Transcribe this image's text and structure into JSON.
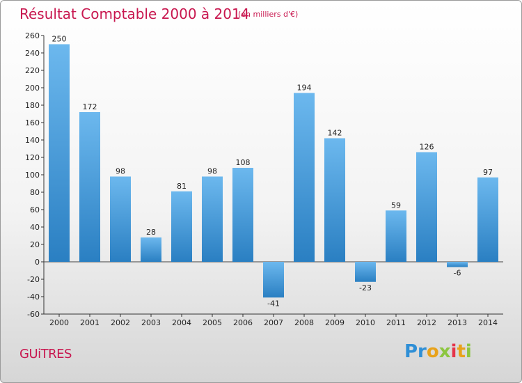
{
  "header": {
    "title": "Résultat Comptable 2000 à 2014",
    "subtitle": "(en milliers d'€)"
  },
  "footer": {
    "town": "GUiTRES",
    "logo": {
      "p": "Pr",
      "o": "o",
      "x": "x",
      "i": "i",
      "t": "t",
      "i2": "i"
    }
  },
  "colors": {
    "bar_top": "#6cb8ee",
    "bar_bottom": "#2a7fc2",
    "title": "#c8174f"
  },
  "chart_data": {
    "type": "bar",
    "title": "Résultat Comptable 2000 à 2014",
    "subtitle": "(en milliers d'€)",
    "categories": [
      "2000",
      "2001",
      "2002",
      "2003",
      "2004",
      "2005",
      "2006",
      "2007",
      "2008",
      "2009",
      "2010",
      "2011",
      "2012",
      "2013",
      "2014"
    ],
    "values": [
      250,
      172,
      98,
      28,
      81,
      98,
      108,
      -41,
      194,
      142,
      -23,
      59,
      126,
      -6,
      97
    ],
    "xlabel": "",
    "ylabel": "",
    "ylim": [
      -60,
      260
    ],
    "yticks": [
      -60,
      -40,
      -20,
      0,
      20,
      40,
      60,
      80,
      100,
      120,
      140,
      160,
      180,
      200,
      220,
      240,
      260
    ],
    "grid": false
  }
}
